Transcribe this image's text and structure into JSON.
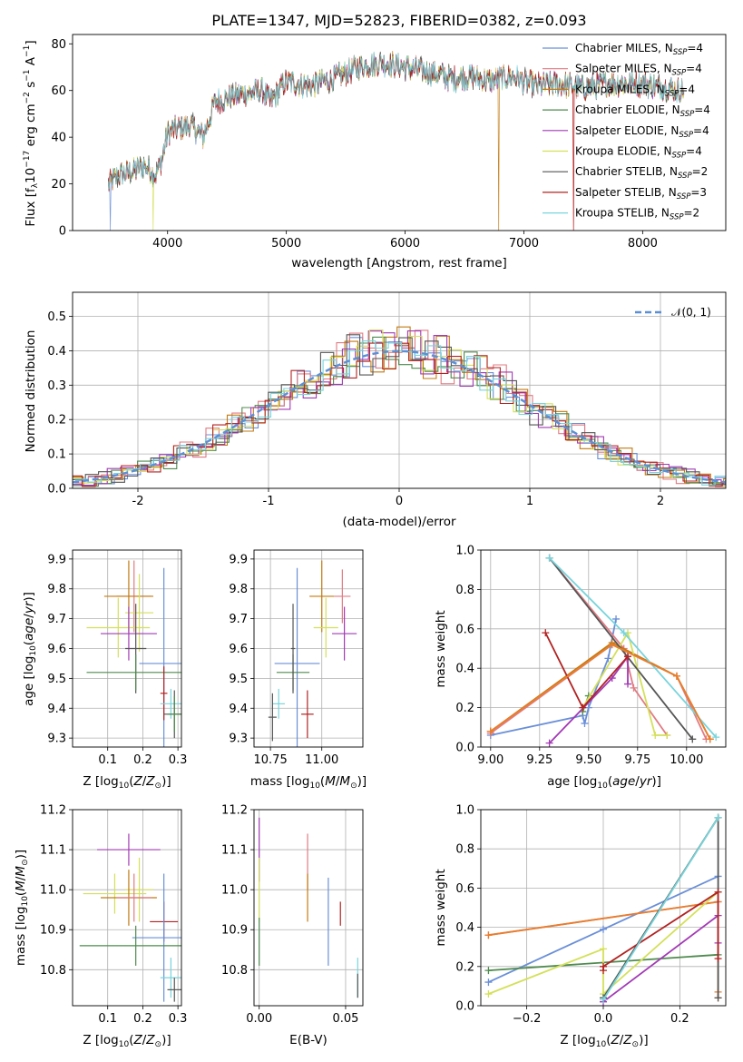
{
  "chart_data": [
    {
      "type": "line",
      "title": "PLATE=1347, MJD=52823, FIBERID=0382, z=0.093",
      "xlabel": "wavelength [Angstrom, rest frame]",
      "ylabel": "Flux [fλ10⁻¹⁷ erg cm⁻² s⁻¹ A⁻¹]",
      "xlim": [
        3200,
        8700
      ],
      "ylim": [
        0,
        84
      ],
      "xticks": [
        4000,
        5000,
        6000,
        7000,
        8000
      ],
      "yticks": [
        0,
        20,
        40,
        60,
        80
      ],
      "grid": false,
      "legend_position": "upper right",
      "spectrum_anchors": [
        [
          3500,
          20
        ],
        [
          3600,
          24
        ],
        [
          3700,
          25
        ],
        [
          3800,
          28
        ],
        [
          3900,
          24
        ],
        [
          3950,
          30
        ],
        [
          4000,
          42
        ],
        [
          4100,
          44
        ],
        [
          4200,
          45
        ],
        [
          4300,
          40
        ],
        [
          4400,
          55
        ],
        [
          4600,
          58
        ],
        [
          4800,
          60
        ],
        [
          4860,
          55
        ],
        [
          5000,
          64
        ],
        [
          5200,
          62
        ],
        [
          5400,
          65
        ],
        [
          5600,
          70
        ],
        [
          5800,
          72
        ],
        [
          6000,
          70
        ],
        [
          6200,
          68
        ],
        [
          6400,
          65
        ],
        [
          6563,
          66
        ],
        [
          6700,
          64
        ],
        [
          6900,
          66
        ],
        [
          7100,
          62
        ],
        [
          7300,
          63
        ],
        [
          7500,
          61
        ],
        [
          7700,
          63
        ],
        [
          8000,
          63
        ],
        [
          8300,
          60
        ],
        [
          8350,
          60
        ]
      ],
      "series": [
        {
          "name": "Chabrier MILES, N_SSP=4",
          "color": "#6a8fd8"
        },
        {
          "name": "Salpeter MILES, N_SSP=4",
          "color": "#e07b83"
        },
        {
          "name": "Kroupa MILES, N_SSP=4",
          "color": "#c27a12"
        },
        {
          "name": "Chabrier ELODIE, N_SSP=4",
          "color": "#4f8a4f"
        },
        {
          "name": "Salpeter ELODIE, N_SSP=4",
          "color": "#a23ab5"
        },
        {
          "name": "Kroupa ELODIE, N_SSP=4",
          "color": "#d4e05a"
        },
        {
          "name": "Chabrier STELIB, N_SSP=2",
          "color": "#555555"
        },
        {
          "name": "Salpeter STELIB, N_SSP=3",
          "color": "#b22222"
        },
        {
          "name": "Kroupa STELIB, N_SSP=2",
          "color": "#79d4dc"
        }
      ],
      "legend_parts": [
        {
          "pre": "Chabrier MILES, N",
          "sub": "SSP",
          "post": "=4"
        },
        {
          "pre": "Salpeter MILES, N",
          "sub": "SSP",
          "post": "=4"
        },
        {
          "pre": "Kroupa MILES, N",
          "sub": "SSP",
          "post": "=4"
        },
        {
          "pre": "Chabrier ELODIE, N",
          "sub": "SSP",
          "post": "=4"
        },
        {
          "pre": "Salpeter ELODIE, N",
          "sub": "SSP",
          "post": "=4"
        },
        {
          "pre": "Kroupa ELODIE, N",
          "sub": "SSP",
          "post": "=4"
        },
        {
          "pre": "Chabrier STELIB, N",
          "sub": "SSP",
          "post": "=2"
        },
        {
          "pre": "Salpeter STELIB, N",
          "sub": "SSP",
          "post": "=3"
        },
        {
          "pre": "Kroupa STELIB, N",
          "sub": "SSP",
          "post": "=2"
        }
      ]
    },
    {
      "type": "histogram",
      "xlabel": "(data-model)/error",
      "ylabel": "Normed distribution",
      "xlim": [
        -2.5,
        2.5
      ],
      "ylim": [
        0,
        0.57
      ],
      "xticks": [
        -2,
        -1,
        0,
        1,
        2
      ],
      "yticks": [
        0.0,
        0.1,
        0.2,
        0.3,
        0.4,
        0.5
      ],
      "grid": true,
      "legend": "𝒩(0, 1)",
      "legend_position": "upper right",
      "reference_curve": "normal(0,1)",
      "bin_width": 0.1,
      "bins_from": -2.5,
      "base_counts": [
        0.02,
        0.025,
        0.03,
        0.03,
        0.04,
        0.045,
        0.05,
        0.06,
        0.07,
        0.08,
        0.09,
        0.1,
        0.12,
        0.13,
        0.14,
        0.16,
        0.18,
        0.2,
        0.22,
        0.24,
        0.26,
        0.28,
        0.3,
        0.32,
        0.34,
        0.36,
        0.38,
        0.4,
        0.41,
        0.42,
        0.42,
        0.43,
        0.42,
        0.41,
        0.4,
        0.38,
        0.36,
        0.35,
        0.33,
        0.31,
        0.28,
        0.26,
        0.24,
        0.22,
        0.2,
        0.18,
        0.15,
        0.13,
        0.11,
        0.09,
        0.07,
        0.06,
        0.05,
        0.04,
        0.035,
        0.03,
        0.025,
        0.02,
        0.02,
        0.015,
        0.012,
        0.01,
        0.01,
        0.008,
        0.006,
        0.005,
        0.004,
        0.003,
        0.002,
        0.002
      ],
      "series_colors": [
        "#6a8fd8",
        "#e07b83",
        "#c27a12",
        "#4f8a4f",
        "#a23ab5",
        "#d4e05a",
        "#555555",
        "#b22222",
        "#79d4dc"
      ]
    },
    {
      "type": "errorbar",
      "xlabel": "Z [log₁₀(Z/Z⊙)]",
      "ylabel": "age  [log₁₀(age/yr)]",
      "xlim": [
        0.0,
        0.31
      ],
      "ylim": [
        9.27,
        9.93
      ],
      "xticks": [
        0.1,
        0.2,
        0.3
      ],
      "yticks": [
        9.3,
        9.4,
        9.5,
        9.6,
        9.7,
        9.8,
        9.9
      ],
      "grid": true,
      "points": [
        {
          "x": 0.175,
          "y": 9.775,
          "xerr": 0.05,
          "yerr": 0.12,
          "color": "#e07b83"
        },
        {
          "x": 0.16,
          "y": 9.775,
          "xerr": 0.07,
          "yerr": 0.12,
          "color": "#c27a12"
        },
        {
          "x": 0.19,
          "y": 9.72,
          "xerr": 0.04,
          "yerr": 0.13,
          "color": "#d4e05a"
        },
        {
          "x": 0.13,
          "y": 9.67,
          "xerr": 0.09,
          "yerr": 0.1,
          "color": "#d4e05a"
        },
        {
          "x": 0.16,
          "y": 9.65,
          "xerr": 0.08,
          "yerr": 0.09,
          "color": "#a23ab5"
        },
        {
          "x": 0.18,
          "y": 9.6,
          "xerr": 0.03,
          "yerr": 0.15,
          "color": "#555555"
        },
        {
          "x": 0.26,
          "y": 9.55,
          "xerr": 0.07,
          "yerr": 0.32,
          "color": "#6a8fd8"
        },
        {
          "x": 0.18,
          "y": 9.52,
          "xerr": 0.14,
          "yerr": 0.06,
          "color": "#4f8a4f"
        },
        {
          "x": 0.26,
          "y": 9.45,
          "xerr": 0.01,
          "yerr": 0.09,
          "color": "#b22222"
        },
        {
          "x": 0.28,
          "y": 9.415,
          "xerr": 0.03,
          "yerr": 0.05,
          "color": "#79d4dc"
        },
        {
          "x": 0.29,
          "y": 9.38,
          "xerr": 0.03,
          "yerr": 0.08,
          "color": "#555555"
        },
        {
          "x": 0.29,
          "y": 9.38,
          "xerr": 0.02,
          "yerr": 0.06,
          "color": "#4f8a4f"
        }
      ]
    },
    {
      "type": "errorbar",
      "xlabel": "mass [log₁₀(M/M⊙)]",
      "xlim": [
        10.67,
        11.2
      ],
      "ylim": [
        9.27,
        9.93
      ],
      "xticks": [
        10.75,
        11.0
      ],
      "xtick_labels": [
        "10.75",
        "11.00"
      ],
      "yticks": [
        9.3,
        9.4,
        9.5,
        9.6,
        9.7,
        9.8,
        9.9
      ],
      "grid": true,
      "points": [
        {
          "x": 11.1,
          "y": 9.775,
          "xerr": 0.04,
          "yerr": 0.09,
          "color": "#e07b83"
        },
        {
          "x": 11.0,
          "y": 9.775,
          "xerr": 0.06,
          "yerr": 0.12,
          "color": "#c27a12"
        },
        {
          "x": 11.02,
          "y": 9.67,
          "xerr": 0.06,
          "yerr": 0.1,
          "color": "#d4e05a"
        },
        {
          "x": 11.11,
          "y": 9.65,
          "xerr": 0.06,
          "yerr": 0.09,
          "color": "#a23ab5"
        },
        {
          "x": 10.88,
          "y": 9.55,
          "xerr": 0.11,
          "yerr": 0.32,
          "color": "#6a8fd8"
        },
        {
          "x": 10.86,
          "y": 9.52,
          "xerr": 0.08,
          "yerr": 0.06,
          "color": "#4f8a4f"
        },
        {
          "x": 10.86,
          "y": 9.6,
          "xerr": 0.01,
          "yerr": 0.15,
          "color": "#555555"
        },
        {
          "x": 10.93,
          "y": 9.38,
          "xerr": 0.03,
          "yerr": 0.08,
          "color": "#b22222"
        },
        {
          "x": 10.79,
          "y": 9.415,
          "xerr": 0.03,
          "yerr": 0.05,
          "color": "#79d4dc"
        },
        {
          "x": 10.76,
          "y": 9.37,
          "xerr": 0.02,
          "yerr": 0.08,
          "color": "#555555"
        }
      ]
    },
    {
      "type": "line",
      "xlabel": "age  [log₁₀(age/yr)]",
      "ylabel": "mass weight",
      "xlim": [
        8.95,
        10.2
      ],
      "ylim": [
        0,
        1
      ],
      "xticks": [
        9.0,
        9.25,
        9.5,
        9.75,
        10.0
      ],
      "xtick_labels": [
        "9.00",
        "9.25",
        "9.50",
        "9.75",
        "10.00"
      ],
      "yticks": [
        0.0,
        0.2,
        0.4,
        0.6,
        0.8,
        1.0
      ],
      "grid": true,
      "series": [
        {
          "color": "#6a8fd8",
          "x": [
            9.0,
            9.47,
            9.48,
            9.5,
            9.6,
            9.64
          ],
          "y": [
            0.06,
            0.16,
            0.12,
            0.2,
            0.45,
            0.65
          ]
        },
        {
          "color": "#e07b83",
          "x": [
            9.0,
            9.62,
            9.95,
            10.1
          ],
          "y": [
            0.07,
            0.52,
            0.36,
            0.04
          ]
        },
        {
          "color": "#e07b83",
          "x": [
            9.3,
            9.68,
            9.73,
            9.9
          ],
          "y": [
            0.96,
            0.5,
            0.3,
            0.06
          ]
        },
        {
          "color": "#c27a12",
          "x": [
            9.0,
            9.62,
            9.95,
            10.12
          ],
          "y": [
            0.08,
            0.53,
            0.36,
            0.04
          ]
        },
        {
          "color": "#4f8a4f",
          "x": [
            9.47,
            9.5
          ],
          "y": [
            0.18,
            0.26
          ]
        },
        {
          "color": "#a23ab5",
          "x": [
            9.3,
            9.62,
            9.7,
            9.7
          ],
          "y": [
            0.02,
            0.35,
            0.46,
            0.32
          ]
        },
        {
          "color": "#d4e05a",
          "x": [
            9.47,
            9.7,
            9.84,
            9.9
          ],
          "y": [
            0.2,
            0.58,
            0.06,
            0.06
          ]
        },
        {
          "color": "#555555",
          "x": [
            9.3,
            10.03
          ],
          "y": [
            0.96,
            0.04
          ]
        },
        {
          "color": "#b22222",
          "x": [
            9.28,
            9.47,
            9.7
          ],
          "y": [
            0.58,
            0.2,
            0.46
          ]
        },
        {
          "color": "#79d4dc",
          "x": [
            9.3,
            9.68,
            10.15
          ],
          "y": [
            0.96,
            0.58,
            0.05
          ]
        },
        {
          "color": "#e87e2d",
          "x": [
            9.0,
            9.62,
            9.95,
            10.12
          ],
          "y": [
            0.08,
            0.52,
            0.36,
            0.04
          ]
        }
      ]
    },
    {
      "type": "errorbar",
      "xlabel": "Z [log₁₀(Z/Z⊙)]",
      "ylabel": "mass [log₁₀(M/M⊙)]",
      "xlim": [
        0.0,
        0.31
      ],
      "ylim": [
        10.71,
        11.2
      ],
      "xticks": [
        0.1,
        0.2,
        0.3
      ],
      "yticks": [
        10.8,
        10.9,
        11.0,
        11.1,
        11.2
      ],
      "grid": true,
      "points": [
        {
          "x": 0.16,
          "y": 11.1,
          "xerr": 0.09,
          "yerr": 0.04,
          "color": "#a23ab5"
        },
        {
          "x": 0.19,
          "y": 11.0,
          "xerr": 0.04,
          "yerr": 0.08,
          "color": "#d4e05a"
        },
        {
          "x": 0.12,
          "y": 10.99,
          "xerr": 0.09,
          "yerr": 0.05,
          "color": "#d4e05a"
        },
        {
          "x": 0.16,
          "y": 10.98,
          "xerr": 0.08,
          "yerr": 0.07,
          "color": "#c27a12"
        },
        {
          "x": 0.175,
          "y": 10.98,
          "xerr": 0.05,
          "yerr": 0.06,
          "color": "#e07b83"
        },
        {
          "x": 0.26,
          "y": 10.92,
          "xerr": 0.04,
          "yerr": 0.05,
          "color": "#b22222"
        },
        {
          "x": 0.26,
          "y": 10.88,
          "xerr": 0.09,
          "yerr": 0.16,
          "color": "#6a8fd8"
        },
        {
          "x": 0.18,
          "y": 10.86,
          "xerr": 0.16,
          "yerr": 0.05,
          "color": "#4f8a4f"
        },
        {
          "x": 0.28,
          "y": 10.78,
          "xerr": 0.03,
          "yerr": 0.05,
          "color": "#79d4dc"
        },
        {
          "x": 0.29,
          "y": 10.75,
          "xerr": 0.02,
          "yerr": 0.03,
          "color": "#555555"
        }
      ]
    },
    {
      "type": "errorbar",
      "xlabel": "E(B-V)",
      "xlim": [
        -0.003,
        0.06
      ],
      "ylim": [
        10.71,
        11.2
      ],
      "xticks": [
        0.0,
        0.05
      ],
      "xtick_labels": [
        "0.00",
        "0.05"
      ],
      "yticks": [
        10.8,
        10.9,
        11.0,
        11.1,
        11.2
      ],
      "grid": true,
      "points": [
        {
          "x": 0.0,
          "y": 11.1,
          "xerr": 0,
          "yerr": 0.08,
          "color": "#a23ab5"
        },
        {
          "x": 0.0,
          "y": 11.0,
          "xerr": 0,
          "yerr": 0.08,
          "color": "#d4e05a"
        },
        {
          "x": 0.0,
          "y": 10.87,
          "xerr": 0,
          "yerr": 0.06,
          "color": "#4f8a4f"
        },
        {
          "x": 0.028,
          "y": 11.07,
          "xerr": 0,
          "yerr": 0.07,
          "color": "#e07b83"
        },
        {
          "x": 0.028,
          "y": 10.98,
          "xerr": 0,
          "yerr": 0.06,
          "color": "#c27a12"
        },
        {
          "x": 0.04,
          "y": 10.92,
          "xerr": 0,
          "yerr": 0.11,
          "color": "#6a8fd8"
        },
        {
          "x": 0.047,
          "y": 10.94,
          "xerr": 0,
          "yerr": 0.03,
          "color": "#b22222"
        },
        {
          "x": 0.057,
          "y": 10.78,
          "xerr": 0,
          "yerr": 0.05,
          "color": "#79d4dc"
        },
        {
          "x": 0.057,
          "y": 10.76,
          "xerr": 0,
          "yerr": 0.03,
          "color": "#555555"
        }
      ]
    },
    {
      "type": "line",
      "xlabel": "Z [log₁₀(Z/Z⊙)]",
      "ylabel": "mass weight",
      "xlim": [
        -0.32,
        0.32
      ],
      "ylim": [
        0,
        1
      ],
      "xticks": [
        -0.2,
        0.0,
        0.2
      ],
      "xtick_labels": [
        "−0.2",
        "0.0",
        "0.2"
      ],
      "yticks": [
        0.0,
        0.2,
        0.4,
        0.6,
        0.8,
        1.0
      ],
      "grid": true,
      "series": [
        {
          "color": "#6a8fd8",
          "x": [
            -0.3,
            0.0,
            0.3
          ],
          "y": [
            0.12,
            0.39,
            0.66
          ]
        },
        {
          "color": "#e07b83",
          "x": [
            -0.3,
            0.3
          ],
          "y": [
            0.36,
            0.53
          ]
        },
        {
          "color": "#e87e2d",
          "x": [
            -0.3,
            0.3,
            0.3,
            0.3
          ],
          "y": [
            0.36,
            0.53,
            0.07,
            0.04
          ]
        },
        {
          "color": "#4f8a4f",
          "x": [
            -0.3,
            0.3
          ],
          "y": [
            0.18,
            0.26
          ]
        },
        {
          "color": "#4f8a4f",
          "x": [
            0.0,
            0.3
          ],
          "y": [
            0.04,
            0.96
          ]
        },
        {
          "color": "#a23ab5",
          "x": [
            0.0,
            0.3,
            0.3
          ],
          "y": [
            0.02,
            0.46,
            0.32
          ]
        },
        {
          "color": "#d4e05a",
          "x": [
            -0.3,
            0.0,
            0.0,
            0.3
          ],
          "y": [
            0.06,
            0.29,
            0.06,
            0.58
          ]
        },
        {
          "color": "#555555",
          "x": [
            0.0,
            0.3,
            0.3
          ],
          "y": [
            0.04,
            0.96,
            0.04
          ]
        },
        {
          "color": "#b22222",
          "x": [
            0.0,
            0.0,
            0.3,
            0.3
          ],
          "y": [
            0.18,
            0.2,
            0.58,
            0.24
          ]
        },
        {
          "color": "#79d4dc",
          "x": [
            0.0,
            0.3
          ],
          "y": [
            0.03,
            0.96
          ]
        }
      ]
    }
  ]
}
